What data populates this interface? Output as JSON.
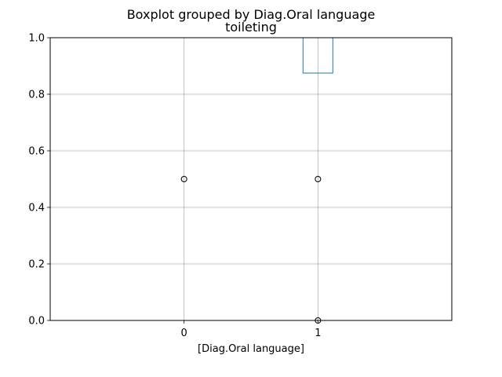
{
  "chart_data": {
    "type": "boxplot",
    "suptitle": "Boxplot grouped by Diag.Oral language",
    "title": "toileting",
    "xlabel": "[Diag.Oral language]",
    "ylabel": "",
    "ylim": [
      0,
      1
    ],
    "yticks": [
      "0.0",
      "0.2",
      "0.4",
      "0.6",
      "0.8",
      "1.0"
    ],
    "ytick_values": [
      0,
      0.2,
      0.4,
      0.6,
      0.8,
      1.0
    ],
    "categories": [
      "0",
      "1"
    ],
    "grid": true,
    "boxes": [
      {
        "category": "0",
        "q1": 1.0,
        "median": 1.0,
        "q3": 1.0,
        "whisker_low": 1.0,
        "whisker_high": 1.0,
        "outliers": [
          0.5
        ]
      },
      {
        "category": "1",
        "q1": 0.875,
        "median": 1.0,
        "q3": 1.0,
        "whisker_low": 0.875,
        "whisker_high": 1.0,
        "outliers": [
          0.5,
          0.0
        ]
      }
    ],
    "colors": {
      "box": "#1f77b4",
      "median": "#2ca02c",
      "whisker": "#000000",
      "grid": "#b0b0b0",
      "axis": "#000000"
    }
  }
}
